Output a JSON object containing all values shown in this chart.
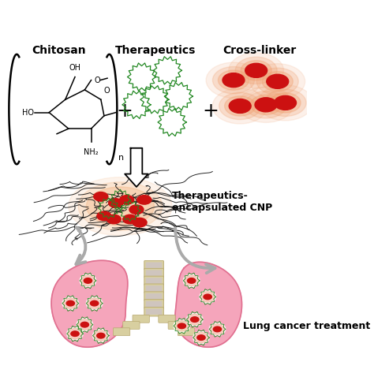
{
  "bg_color": "#ffffff",
  "title_chitosan": "Chitosan",
  "title_therapeutics": "Therapeutics",
  "title_crosslinker": "Cross-linker",
  "label_cnp": "Therapeutics-\nencapsulated CNP",
  "label_lung": "Lung cancer treatment",
  "therapeutics_green": "#228822",
  "crosslinker_red": "#cc1111",
  "crosslinker_orange_bg": "#f0a070",
  "lung_pink": "#f5a0b8",
  "lung_outline": "#e07090",
  "trachea_fill": "#d8cfa0",
  "trachea_outline": "#b8a870",
  "trachea_stripe": "#c8bcdc",
  "arrow_color": "#aaaaaa",
  "nanoparticle_bg": "#f0a060",
  "fiber_color": "#111111"
}
